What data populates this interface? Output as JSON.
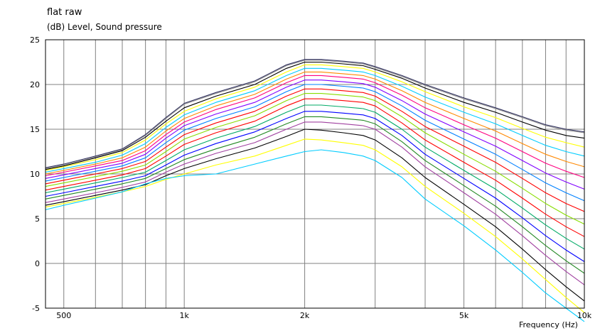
{
  "chart_data": {
    "type": "line",
    "title": "flat raw",
    "ylabel": "(dB)  Level, Sound pressure",
    "xlabel": "Frequency  (Hz)",
    "x_scale": "log",
    "xlim": [
      450,
      10000
    ],
    "ylim": [
      -5,
      25
    ],
    "grid": true,
    "y_ticks": [
      25,
      20,
      15,
      10,
      5,
      0,
      -5
    ],
    "y_tick_labels": [
      "25",
      "20",
      "15",
      "10",
      "5",
      "0",
      "-5"
    ],
    "x_ticks": [
      500,
      1000,
      2000,
      5000,
      10000
    ],
    "x_tick_labels": [
      "500",
      "1k",
      "2k",
      "5k",
      "10k"
    ],
    "x_grid": [
      500,
      600,
      700,
      800,
      900,
      1000,
      2000,
      3000,
      4000,
      5000,
      6000,
      7000,
      8000,
      9000,
      10000
    ],
    "x": [
      450,
      500,
      600,
      700,
      800,
      900,
      1000,
      1200,
      1500,
      1800,
      2000,
      2200,
      2500,
      2800,
      3000,
      3500,
      4000,
      5000,
      6000,
      7000,
      8000,
      9000,
      10000
    ],
    "series": [
      {
        "color": "#303060",
        "values": [
          10.7,
          11.1,
          12.0,
          12.8,
          14.4,
          16.3,
          17.9,
          19.1,
          20.4,
          22.2,
          22.8,
          22.8,
          22.6,
          22.4,
          22.0,
          21.0,
          20.0,
          18.5,
          17.4,
          16.4,
          15.5,
          15.0,
          14.7
        ]
      },
      {
        "color": "#909090",
        "values": [
          10.6,
          11.0,
          11.9,
          12.7,
          14.3,
          16.2,
          17.8,
          19.0,
          20.3,
          22.1,
          22.7,
          22.7,
          22.5,
          22.3,
          21.9,
          20.9,
          19.9,
          18.4,
          17.3,
          16.3,
          15.4,
          14.9,
          14.6
        ]
      },
      {
        "color": "#000000",
        "values": [
          10.5,
          10.9,
          11.8,
          12.6,
          14.1,
          15.9,
          17.4,
          18.7,
          20.0,
          21.8,
          22.5,
          22.5,
          22.3,
          22.1,
          21.7,
          20.7,
          19.6,
          18.0,
          16.9,
          15.8,
          14.9,
          14.3,
          14.0
        ]
      },
      {
        "color": "#ffff00",
        "values": [
          10.4,
          10.8,
          11.6,
          12.4,
          13.8,
          15.6,
          17.0,
          18.4,
          19.7,
          21.4,
          22.2,
          22.2,
          22.0,
          21.8,
          21.4,
          20.3,
          19.2,
          17.5,
          16.3,
          15.1,
          14.1,
          13.5,
          13.0
        ]
      },
      {
        "color": "#00ccff",
        "values": [
          10.2,
          10.6,
          11.3,
          12.1,
          13.4,
          15.2,
          16.6,
          18.0,
          19.3,
          21.0,
          21.8,
          21.8,
          21.6,
          21.4,
          21.0,
          19.8,
          18.6,
          16.9,
          15.6,
          14.3,
          13.2,
          12.5,
          12.0
        ]
      },
      {
        "color": "#ff8800",
        "values": [
          10.0,
          10.4,
          11.1,
          11.8,
          13.0,
          14.8,
          16.2,
          17.6,
          18.9,
          20.6,
          21.4,
          21.4,
          21.2,
          21.0,
          20.6,
          19.3,
          18.0,
          16.2,
          14.8,
          13.4,
          12.2,
          11.4,
          10.8
        ]
      },
      {
        "color": "#ff0080",
        "values": [
          9.8,
          10.2,
          10.9,
          11.5,
          12.6,
          14.4,
          15.8,
          17.2,
          18.5,
          20.2,
          21.0,
          21.0,
          20.8,
          20.6,
          20.2,
          18.8,
          17.4,
          15.5,
          14.0,
          12.5,
          11.2,
          10.3,
          9.6
        ]
      },
      {
        "color": "#8000ff",
        "values": [
          9.5,
          9.9,
          10.6,
          11.2,
          12.2,
          14.0,
          15.4,
          16.7,
          18.0,
          19.7,
          20.5,
          20.5,
          20.3,
          20.1,
          19.7,
          18.2,
          16.7,
          14.7,
          13.1,
          11.5,
          10.1,
          9.1,
          8.3
        ]
      },
      {
        "color": "#0080ff",
        "values": [
          9.2,
          9.6,
          10.3,
          10.9,
          11.8,
          13.5,
          14.9,
          16.2,
          17.5,
          19.2,
          20.0,
          20.0,
          19.8,
          19.6,
          19.2,
          17.6,
          16.0,
          13.9,
          12.2,
          10.5,
          9.0,
          7.9,
          7.0
        ]
      },
      {
        "color": "#ff0000",
        "values": [
          8.9,
          9.3,
          10.0,
          10.6,
          11.4,
          13.0,
          14.4,
          15.7,
          17.0,
          18.7,
          19.5,
          19.5,
          19.3,
          19.1,
          18.7,
          17.0,
          15.3,
          13.1,
          11.3,
          9.5,
          7.9,
          6.7,
          5.8
        ]
      },
      {
        "color": "#88dd00",
        "values": [
          8.6,
          9.0,
          9.7,
          10.3,
          11.0,
          12.5,
          13.9,
          15.2,
          16.5,
          18.2,
          19.0,
          19.0,
          18.8,
          18.6,
          18.2,
          16.4,
          14.6,
          12.2,
          10.3,
          8.4,
          6.7,
          5.4,
          4.4
        ]
      },
      {
        "color": "#ff0000",
        "values": [
          8.2,
          8.6,
          9.3,
          9.9,
          10.6,
          12.0,
          13.3,
          14.6,
          15.9,
          17.6,
          18.4,
          18.4,
          18.2,
          18.0,
          17.6,
          15.7,
          13.8,
          11.3,
          9.3,
          7.3,
          5.5,
          4.1,
          3.0
        ]
      },
      {
        "color": "#00aa66",
        "values": [
          7.9,
          8.3,
          9.0,
          9.6,
          10.2,
          11.5,
          12.7,
          14.0,
          15.3,
          16.9,
          17.7,
          17.7,
          17.5,
          17.3,
          16.9,
          15.0,
          13.0,
          10.4,
          8.3,
          6.2,
          4.3,
          2.8,
          1.6
        ]
      },
      {
        "color": "#0000ff",
        "values": [
          7.5,
          7.9,
          8.6,
          9.2,
          9.8,
          11.0,
          12.1,
          13.4,
          14.7,
          16.2,
          17.0,
          17.0,
          16.8,
          16.6,
          16.2,
          14.3,
          12.2,
          9.5,
          7.3,
          5.1,
          3.1,
          1.5,
          0.2
        ]
      },
      {
        "color": "#228822",
        "values": [
          7.2,
          7.6,
          8.3,
          8.9,
          9.5,
          10.6,
          11.6,
          12.8,
          14.1,
          15.6,
          16.4,
          16.4,
          16.2,
          16.0,
          15.6,
          13.6,
          11.5,
          8.7,
          6.4,
          4.1,
          2.0,
          0.3,
          -1.1
        ]
      },
      {
        "color": "#a040a0",
        "values": [
          6.8,
          7.2,
          7.9,
          8.5,
          9.1,
          10.2,
          11.1,
          12.3,
          13.5,
          15.0,
          15.8,
          15.8,
          15.6,
          15.4,
          15.0,
          13.0,
          10.8,
          7.9,
          5.5,
          3.1,
          0.9,
          -0.9,
          -2.4
        ]
      },
      {
        "color": "#000000",
        "values": [
          6.5,
          6.9,
          7.6,
          8.2,
          8.8,
          9.8,
          10.6,
          11.7,
          12.9,
          14.2,
          15.0,
          14.9,
          14.6,
          14.3,
          13.8,
          11.8,
          9.6,
          6.6,
          4.1,
          1.6,
          -0.7,
          -2.6,
          -4.2
        ]
      },
      {
        "color": "#ffff00",
        "values": [
          6.3,
          6.7,
          7.4,
          8.0,
          8.6,
          9.4,
          10.0,
          11.0,
          12.0,
          13.2,
          13.9,
          13.8,
          13.5,
          13.2,
          12.7,
          10.8,
          8.6,
          5.6,
          3.0,
          0.5,
          -1.8,
          -3.8,
          -5.5
        ]
      },
      {
        "color": "#00ccff",
        "values": [
          6.0,
          6.5,
          7.3,
          8.0,
          8.9,
          9.5,
          9.8,
          10.0,
          11.1,
          12.0,
          12.5,
          12.7,
          12.4,
          12.0,
          11.5,
          9.6,
          7.2,
          4.2,
          1.5,
          -1.0,
          -3.3,
          -5.0,
          -6.5
        ]
      }
    ]
  }
}
